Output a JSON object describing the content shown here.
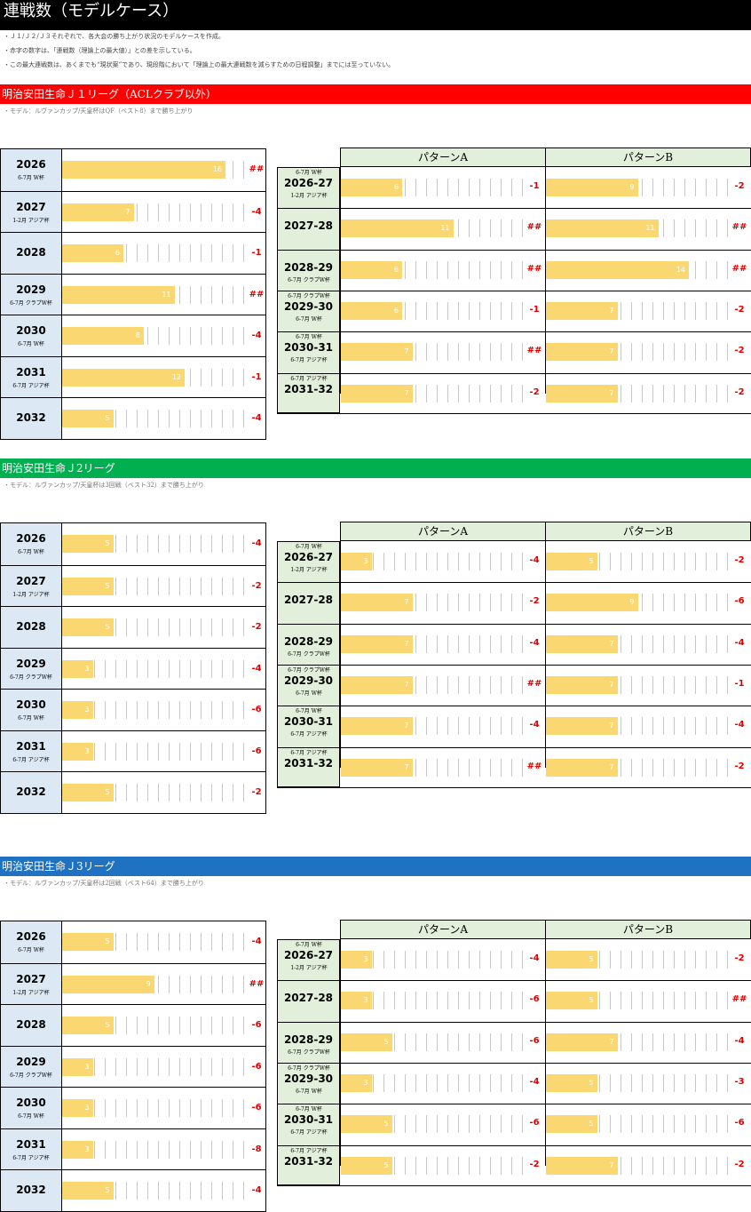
{
  "title": "連戦数（モデルケース）",
  "notes": [
    "・Ｊ１/Ｊ２/Ｊ３それぞれで、各大会の勝ち上がり状況のモデルケースを作成。",
    "・赤字の数字は、「連戦数（理論上の最大値）」との差を示している。",
    "・この最大連戦数は、あくまでも“現状案”であり、現段階において「理論上の最大連戦数を減らすための日程調整」までには至っていない。"
  ],
  "colors": {
    "j1": "#ff0000",
    "j2": "#00b050",
    "j3": "#1f72c2",
    "bar": "#fbd772",
    "diff": "#e00000"
  },
  "pattern_labels": [
    "パターンA",
    "パターンB"
  ],
  "sections": [
    {
      "name": "明治安田生命Ｊ１リーグ（ACLクラブ以外）",
      "model": "・モデル：ルヴァンカップ/天皇杯はQF（ベスト8）まで勝ち上がり",
      "left": [
        {
          "year": "2026",
          "sub": "6-7月 W杯",
          "value": 16,
          "diff": "##"
        },
        {
          "year": "2027",
          "sub": "1-2月 アジア杯",
          "value": 7,
          "diff": "-4"
        },
        {
          "year": "2028",
          "sub": "",
          "value": 6,
          "diff": "-1"
        },
        {
          "year": "2029",
          "sub": "6-7月 クラブW杯",
          "value": 11,
          "diff": "##"
        },
        {
          "year": "2030",
          "sub": "6-7月 W杯",
          "value": 8,
          "diff": "-4"
        },
        {
          "year": "2031",
          "sub": "6-7月 アジア杯",
          "value": 12,
          "diff": "-1"
        },
        {
          "year": "2032",
          "sub": "",
          "value": 5,
          "diff": "-4"
        }
      ],
      "right": [
        {
          "season": "2026-27",
          "sub_top": "6-7月 W杯",
          "sub_bottom": "1-2月 アジア杯",
          "a": 6,
          "a_diff": "-1",
          "b": 9,
          "b_diff": "-2"
        },
        {
          "season": "2027-28",
          "sub_top": "",
          "sub_bottom": "",
          "a": 11,
          "a_diff": "##",
          "b": 11,
          "b_diff": "##"
        },
        {
          "season": "2028-29",
          "sub_top": "",
          "sub_bottom": "6-7月 クラブW杯",
          "a": 6,
          "a_diff": "##",
          "b": 14,
          "b_diff": "##"
        },
        {
          "season": "2029-30",
          "sub_top": "6-7月 クラブW杯",
          "sub_bottom": "6-7月 W杯",
          "a": 6,
          "a_diff": "-1",
          "b": 7,
          "b_diff": "-2"
        },
        {
          "season": "2030-31",
          "sub_top": "6-7月 W杯",
          "sub_bottom": "6-7月 アジア杯",
          "a": 7,
          "a_diff": "##",
          "b": 7,
          "b_diff": "-2"
        },
        {
          "season": "2031-32",
          "sub_top": "6-7月 アジア杯",
          "sub_bottom": "",
          "a": 7,
          "a_diff": "-2",
          "b": 7,
          "b_diff": "-2"
        }
      ]
    },
    {
      "name": "明治安田生命Ｊ2リーグ",
      "model": "・モデル：ルヴァンカップ/天皇杯は3回戦（ベスト32）まで勝ち上がり",
      "left": [
        {
          "year": "2026",
          "sub": "6-7月 W杯",
          "value": 5,
          "diff": "-4"
        },
        {
          "year": "2027",
          "sub": "1-2月 アジア杯",
          "value": 5,
          "diff": "-2"
        },
        {
          "year": "2028",
          "sub": "",
          "value": 5,
          "diff": "-2"
        },
        {
          "year": "2029",
          "sub": "6-7月 クラブW杯",
          "value": 3,
          "diff": "-4"
        },
        {
          "year": "2030",
          "sub": "6-7月 W杯",
          "value": 3,
          "diff": "-6"
        },
        {
          "year": "2031",
          "sub": "6-7月 アジア杯",
          "value": 3,
          "diff": "-6"
        },
        {
          "year": "2032",
          "sub": "",
          "value": 5,
          "diff": "-2"
        }
      ],
      "right": [
        {
          "season": "2026-27",
          "sub_top": "6-7月 W杯",
          "sub_bottom": "1-2月 アジア杯",
          "a": 3,
          "a_diff": "-4",
          "b": 5,
          "b_diff": "-2"
        },
        {
          "season": "2027-28",
          "sub_top": "",
          "sub_bottom": "",
          "a": 7,
          "a_diff": "-2",
          "b": 9,
          "b_diff": "-6"
        },
        {
          "season": "2028-29",
          "sub_top": "",
          "sub_bottom": "6-7月 クラブW杯",
          "a": 7,
          "a_diff": "-4",
          "b": 7,
          "b_diff": "-4"
        },
        {
          "season": "2029-30",
          "sub_top": "6-7月 クラブW杯",
          "sub_bottom": "6-7月 W杯",
          "a": 7,
          "a_diff": "##",
          "b": 7,
          "b_diff": "-1"
        },
        {
          "season": "2030-31",
          "sub_top": "6-7月 W杯",
          "sub_bottom": "6-7月 アジア杯",
          "a": 7,
          "a_diff": "-4",
          "b": 7,
          "b_diff": "-4"
        },
        {
          "season": "2031-32",
          "sub_top": "6-7月 アジア杯",
          "sub_bottom": "",
          "a": 7,
          "a_diff": "##",
          "b": 7,
          "b_diff": "-2"
        }
      ]
    },
    {
      "name": "明治安田生命Ｊ3リーグ",
      "model": "・モデル：ルヴァンカップ/天皇杯は2回戦（ベスト64）まで勝ち上がり",
      "left": [
        {
          "year": "2026",
          "sub": "6-7月 W杯",
          "value": 5,
          "diff": "-4"
        },
        {
          "year": "2027",
          "sub": "1-2月 アジア杯",
          "value": 9,
          "diff": "##"
        },
        {
          "year": "2028",
          "sub": "",
          "value": 5,
          "diff": "-6"
        },
        {
          "year": "2029",
          "sub": "6-7月 クラブW杯",
          "value": 3,
          "diff": "-6"
        },
        {
          "year": "2030",
          "sub": "6-7月 W杯",
          "value": 3,
          "diff": "-6"
        },
        {
          "year": "2031",
          "sub": "6-7月 アジア杯",
          "value": 3,
          "diff": "-8"
        },
        {
          "year": "2032",
          "sub": "",
          "value": 5,
          "diff": "-4"
        }
      ],
      "right": [
        {
          "season": "2026-27",
          "sub_top": "6-7月 W杯",
          "sub_bottom": "1-2月 アジア杯",
          "a": 3,
          "a_diff": "-4",
          "b": 5,
          "b_diff": "-2"
        },
        {
          "season": "2027-28",
          "sub_top": "",
          "sub_bottom": "",
          "a": 3,
          "a_diff": "-6",
          "b": 5,
          "b_diff": "##"
        },
        {
          "season": "2028-29",
          "sub_top": "",
          "sub_bottom": "6-7月 クラブW杯",
          "a": 5,
          "a_diff": "-6",
          "b": 7,
          "b_diff": "-4"
        },
        {
          "season": "2029-30",
          "sub_top": "6-7月 クラブW杯",
          "sub_bottom": "6-7月 W杯",
          "a": 3,
          "a_diff": "-4",
          "b": 5,
          "b_diff": "-3"
        },
        {
          "season": "2030-31",
          "sub_top": "6-7月 W杯",
          "sub_bottom": "6-7月 アジア杯",
          "a": 5,
          "a_diff": "-6",
          "b": 5,
          "b_diff": "-6"
        },
        {
          "season": "2031-32",
          "sub_top": "6-7月 アジア杯",
          "sub_bottom": "",
          "a": 5,
          "a_diff": "-2",
          "b": 7,
          "b_diff": "-2"
        }
      ]
    }
  ]
}
